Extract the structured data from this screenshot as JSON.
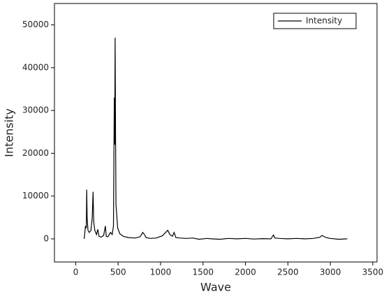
{
  "chart_data": {
    "type": "line",
    "x_label": "Wave",
    "y_label": "Intensity",
    "x": [
      100,
      115,
      125,
      130,
      135,
      145,
      160,
      180,
      195,
      205,
      212,
      225,
      245,
      260,
      275,
      300,
      330,
      350,
      360,
      380,
      410,
      430,
      445,
      455,
      460,
      465,
      470,
      475,
      482,
      495,
      520,
      560,
      620,
      700,
      760,
      790,
      810,
      830,
      880,
      950,
      1020,
      1060,
      1085,
      1110,
      1140,
      1160,
      1180,
      1230,
      1300,
      1380,
      1450,
      1550,
      1600,
      1700,
      1800,
      1900,
      2000,
      2100,
      2200,
      2300,
      2330,
      2345,
      2400,
      2500,
      2600,
      2700,
      2800,
      2880,
      2900,
      2950,
      3000,
      3100,
      3200
    ],
    "series": [
      {
        "name": "Intensity",
        "color": "#000000",
        "values": [
          0,
          3000,
          2500,
          11500,
          5000,
          2000,
          1500,
          2000,
          5000,
          11000,
          4000,
          2000,
          1000,
          2200,
          600,
          400,
          800,
          3000,
          600,
          500,
          1500,
          1000,
          3000,
          33000,
          22000,
          47000,
          25000,
          8000,
          6000,
          2500,
          1200,
          600,
          300,
          200,
          500,
          1500,
          1000,
          300,
          100,
          200,
          700,
          1500,
          2000,
          1000,
          600,
          1500,
          300,
          200,
          100,
          200,
          -100,
          100,
          0,
          -100,
          100,
          0,
          100,
          -50,
          50,
          0,
          900,
          200,
          100,
          0,
          100,
          0,
          100,
          400,
          800,
          300,
          100,
          -100,
          0
        ]
      }
    ],
    "xlim": [
      -250,
      3550
    ],
    "ylim": [
      -5400,
      55000
    ],
    "xticks": [
      0,
      500,
      1000,
      1500,
      2000,
      2500,
      3000,
      3500
    ],
    "yticks": [
      0,
      10000,
      20000,
      30000,
      40000,
      50000
    ],
    "legend": "top-right"
  }
}
